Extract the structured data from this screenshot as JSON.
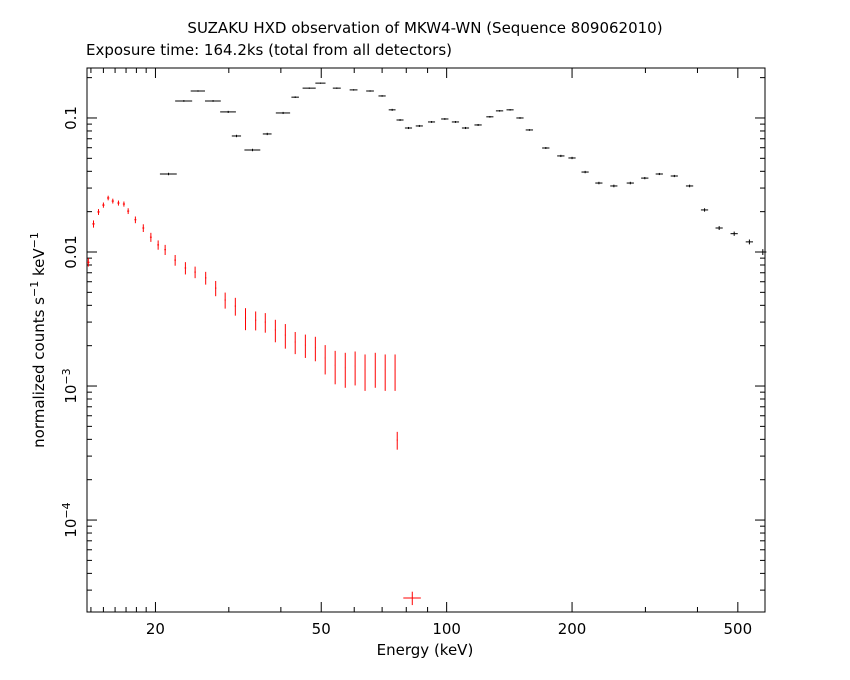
{
  "chart_data": {
    "type": "scatter",
    "title": "SUZAKU HXD observation of MKW4-WN (Sequence 809062010)",
    "subtitle": "Exposure time: 164.2ks (total from all detectors)",
    "xlabel": "Energy (keV)",
    "ylabel_parts": [
      {
        "text": "normalized counts s"
      },
      {
        "text": "−1",
        "sup": true
      },
      {
        "text": " keV"
      },
      {
        "text": "−1",
        "sup": true
      }
    ],
    "xscale": "log",
    "yscale": "log",
    "xlim": [
      13.7,
      581
    ],
    "ylim": [
      2.06e-05,
      0.236
    ],
    "xticks": [
      20,
      50,
      100,
      200,
      500
    ],
    "xminor": [
      14,
      15,
      16,
      17,
      18,
      19,
      30,
      40,
      60,
      70,
      80,
      90,
      300,
      400
    ],
    "yticks": [
      {
        "value": 0.0001,
        "label": "10",
        "exponent": "−4"
      },
      {
        "value": 0.001,
        "label": "10",
        "exponent": "−3"
      },
      0.01,
      0.1
    ],
    "yminor": [
      3e-05,
      4e-05,
      5e-05,
      6e-05,
      7e-05,
      8e-05,
      9e-05,
      0.0002,
      0.0003,
      0.0004,
      0.0005,
      0.0006,
      0.0007,
      0.0008,
      0.0009,
      0.002,
      0.003,
      0.004,
      0.005,
      0.006,
      0.007,
      0.008,
      0.009,
      0.02,
      0.03,
      0.04,
      0.05,
      0.06,
      0.07,
      0.08,
      0.09,
      0.2
    ],
    "series": [
      {
        "color": "#000000",
        "x": [
          21.5,
          23.4,
          25.3,
          27.5,
          29.9,
          31.3,
          34.2,
          37.1,
          40.5,
          43.3,
          46.8,
          49.8,
          54.5,
          59.8,
          65.5,
          70.0,
          74.0,
          77.3,
          81.0,
          86,
          92,
          99,
          105,
          111,
          119,
          127,
          134,
          142,
          150,
          158,
          173,
          188,
          200,
          215,
          232,
          252,
          276,
          299,
          324,
          352,
          383,
          416,
          451,
          490,
          533,
          574
        ],
        "xerr": [
          1.0,
          1.1,
          1.0,
          1.2,
          1.3,
          0.8,
          1.5,
          0.9,
          1.6,
          0.9,
          1.7,
          1.4,
          1.2,
          1.3,
          1.4,
          1.4,
          1.4,
          1.5,
          1.6,
          1.7,
          1.8,
          2.0,
          2.1,
          2.2,
          2.4,
          2.5,
          2.7,
          2.8,
          3.0,
          3.2,
          3.5,
          3.8,
          4.0,
          4.3,
          4.6,
          5.0,
          5.5,
          6.0,
          6.5,
          7.0,
          7.7,
          8.3,
          9.0,
          9.8,
          10.7,
          11.5
        ],
        "values": [
          0.0382,
          0.134,
          0.159,
          0.134,
          0.111,
          0.0734,
          0.0577,
          0.076,
          0.109,
          0.143,
          0.167,
          0.182,
          0.167,
          0.162,
          0.159,
          0.146,
          0.115,
          0.0966,
          0.0842,
          0.0872,
          0.0934,
          0.0983,
          0.0934,
          0.0842,
          0.0887,
          0.102,
          0.113,
          0.115,
          0.1,
          0.0814,
          0.0597,
          0.0521,
          0.0503,
          0.0395,
          0.0327,
          0.0311,
          0.0327,
          0.0356,
          0.0382,
          0.0369,
          0.0311,
          0.0206,
          0.0151,
          0.0137,
          0.0119,
          0.01
        ],
        "yerr": [
          0.0008,
          0.002,
          0.002,
          0.002,
          0.002,
          0.0015,
          0.0012,
          0.0015,
          0.002,
          0.002,
          0.002,
          0.002,
          0.002,
          0.002,
          0.002,
          0.002,
          0.002,
          0.0015,
          0.0015,
          0.0015,
          0.0015,
          0.0015,
          0.0015,
          0.0015,
          0.0015,
          0.0015,
          0.0015,
          0.0015,
          0.0015,
          0.0012,
          0.001,
          0.001,
          0.001,
          0.0008,
          0.0007,
          0.0007,
          0.0007,
          0.0007,
          0.0007,
          0.0007,
          0.0007,
          0.0006,
          0.0005,
          0.0005,
          0.0005,
          0.0005
        ]
      },
      {
        "color": "#ff0000",
        "x": [
          13.8,
          14.2,
          14.6,
          15.0,
          15.4,
          15.8,
          16.3,
          16.8,
          17.2,
          17.9,
          18.7,
          19.5,
          20.3,
          21.1,
          22.3,
          23.6,
          24.9,
          26.4,
          27.9,
          29.4,
          31.1,
          32.9,
          34.8,
          36.7,
          38.8,
          41.0,
          43.3,
          45.8,
          48.4,
          51.1,
          54.0,
          57.1,
          60.3,
          63.7,
          67.4,
          71.2,
          75.2,
          76.1,
          82.7
        ],
        "xerr": [
          0.1,
          0.1,
          0.1,
          0.1,
          0.1,
          0.1,
          0.1,
          0.1,
          0.1,
          0.1,
          0.1,
          0.1,
          0.1,
          0.1,
          0.1,
          0.1,
          0.1,
          0.1,
          0.1,
          0.1,
          0.1,
          0.1,
          0.1,
          0.1,
          0.1,
          0.1,
          0.1,
          0.1,
          0.1,
          0.1,
          0.1,
          0.1,
          0.1,
          0.1,
          0.1,
          0.1,
          0.1,
          0.2,
          4.0
        ],
        "values": [
          0.00839,
          0.0162,
          0.0199,
          0.0224,
          0.0253,
          0.024,
          0.0232,
          0.0228,
          0.0202,
          0.0174,
          0.0151,
          0.0129,
          0.0113,
          0.0104,
          0.0087,
          0.0076,
          0.00708,
          0.00641,
          0.00538,
          0.00438,
          0.00395,
          0.00321,
          0.0031,
          0.003,
          0.00262,
          0.0024,
          0.00213,
          0.00202,
          0.00193,
          0.00162,
          0.00143,
          0.00137,
          0.00141,
          0.00132,
          0.00137,
          0.00132,
          0.00132,
          0.000395,
          2.62e-05
        ],
        "yerr": [
          0.0006,
          0.001,
          0.001,
          0.001,
          0.001,
          0.001,
          0.001,
          0.001,
          0.001,
          0.001,
          0.001,
          0.001,
          0.0009,
          0.0009,
          0.0008,
          0.0008,
          0.0007,
          0.0007,
          0.0007,
          0.0006,
          0.0006,
          0.0006,
          0.0005,
          0.0005,
          0.0005,
          0.0005,
          0.0004,
          0.0004,
          0.0004,
          0.0004,
          0.0004,
          0.0004,
          0.0004,
          0.0004,
          0.0004,
          0.0004,
          0.0004,
          6e-05,
          3e-06
        ]
      }
    ]
  }
}
